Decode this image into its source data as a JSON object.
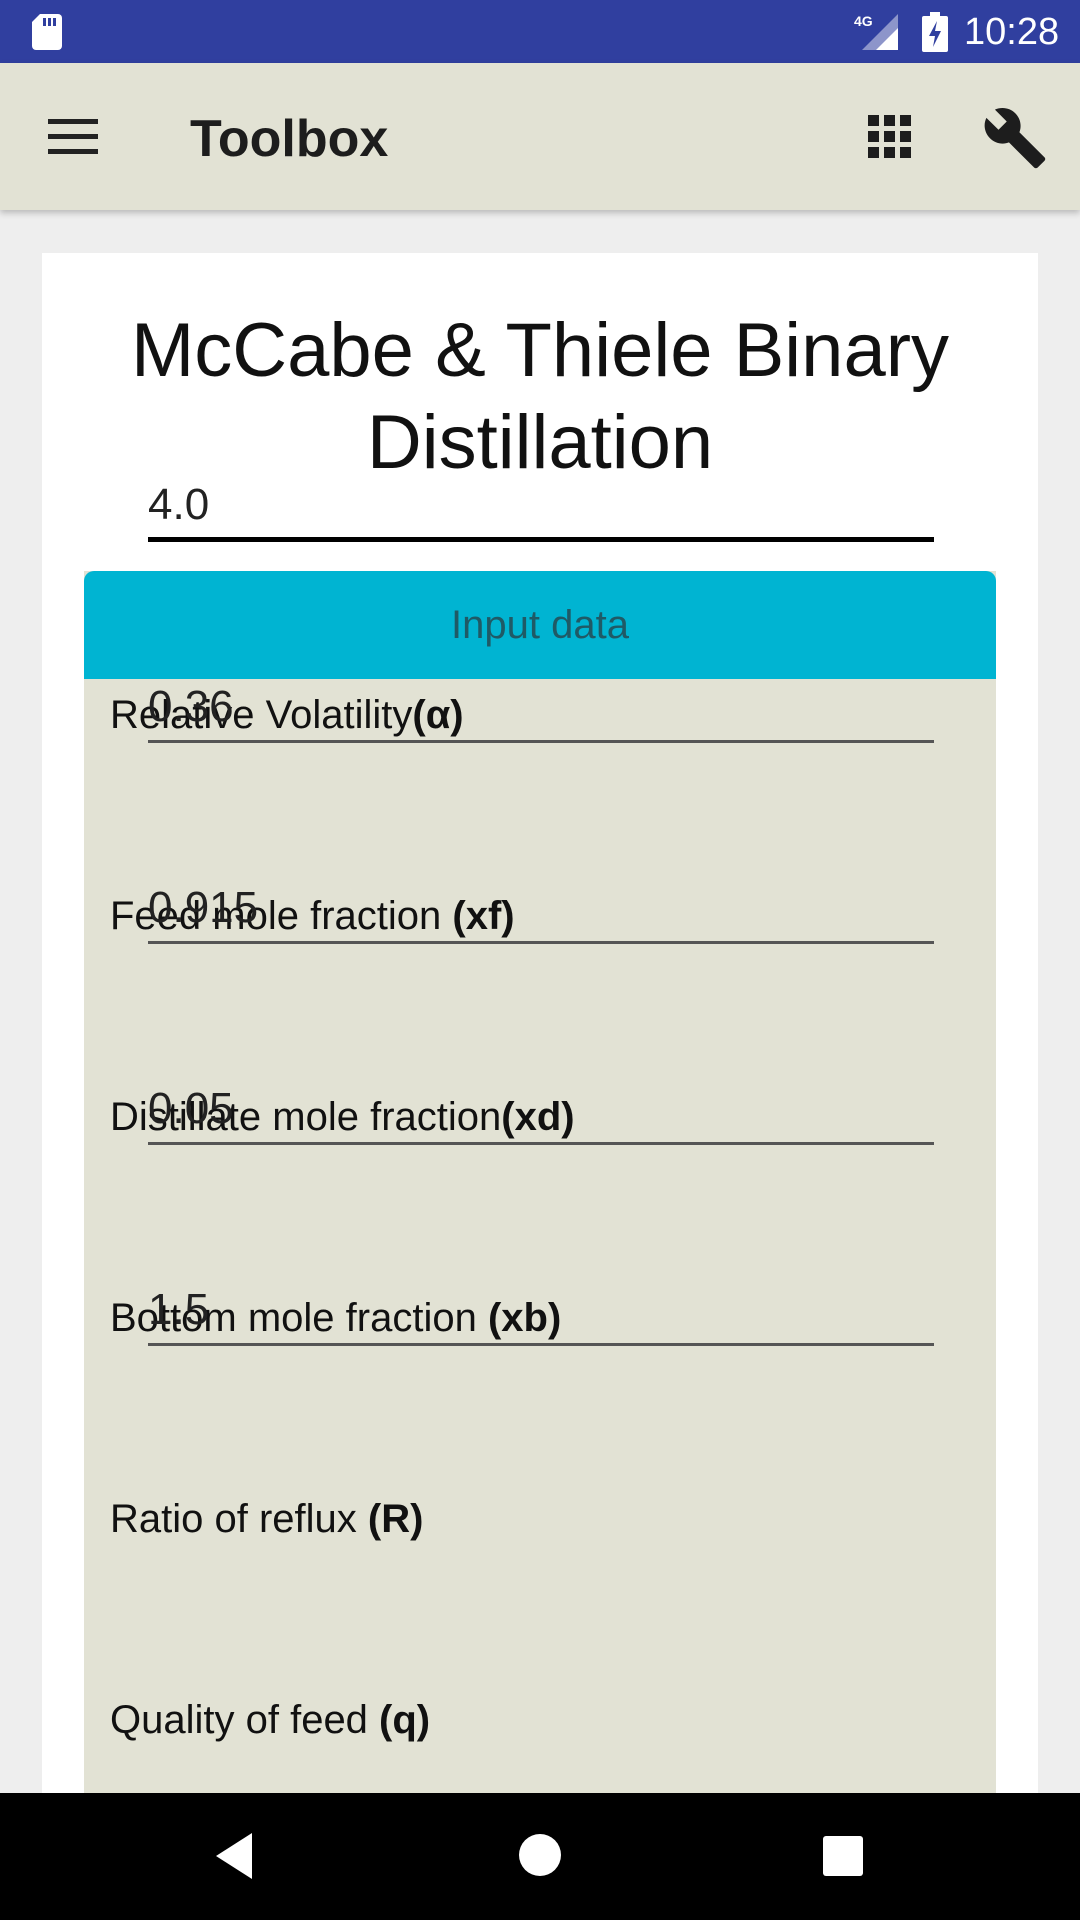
{
  "status_bar": {
    "time": "10:28",
    "network": "4G"
  },
  "app_bar": {
    "title": "Toolbox"
  },
  "page": {
    "title_line1": "McCabe & Thiele Binary",
    "title_line2": "Distillation"
  },
  "panel": {
    "header": "Input data",
    "fields": [
      {
        "label": "Relative Volatility",
        "label_bold": "(α)",
        "value": "4.0",
        "focused": true
      },
      {
        "label": "Feed mole fraction ",
        "label_bold": "(xf)",
        "value": "0.36"
      },
      {
        "label": "Distillate mole fraction",
        "label_bold": "(xd)",
        "value": "0.915"
      },
      {
        "label": "Bottom mole fraction ",
        "label_bold": "(xb)",
        "value": "0.05"
      },
      {
        "label": "Ratio of reflux ",
        "label_bold": "(R)",
        "value": "1.5"
      },
      {
        "label": "Quality of feed ",
        "label_bold": "(q)"
      }
    ]
  },
  "icons": {
    "status": [
      "sd-card-icon",
      "signal-icon",
      "battery-charging-icon"
    ],
    "app_bar": [
      "menu-icon",
      "apps-grid-icon",
      "wrench-icon"
    ],
    "nav": [
      "back-icon",
      "home-icon",
      "recent-apps-icon"
    ]
  },
  "colors": {
    "status_bar": "#303f9f",
    "app_bar": "#e2e2d4",
    "panel_header": "#00b4d2",
    "panel_bg": "#e2e2d4"
  }
}
